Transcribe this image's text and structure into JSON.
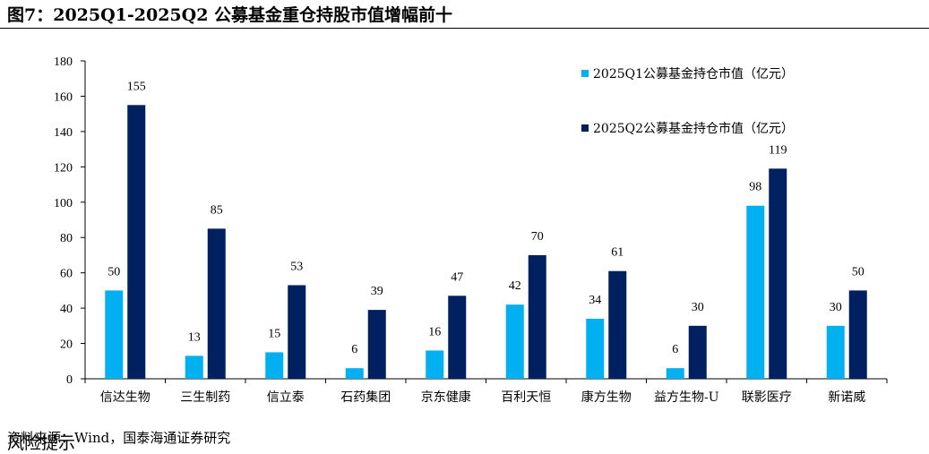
{
  "figure": {
    "title": "图7：2025Q1-2025Q2 公募基金重仓持股市值增幅前十",
    "source": "资料来源：Wind，国泰海通证券研究",
    "risk_note": "风险提示"
  },
  "colors": {
    "q1": "#00B0F0",
    "q2": "#002060"
  },
  "chart_data": {
    "type": "bar",
    "title": "",
    "xlabel": "",
    "ylabel": "",
    "categories": [
      "信达生物",
      "三生制药",
      "信立泰",
      "石药集团",
      "京东健康",
      "百利天恒",
      "康方生物",
      "益方生物-U",
      "联影医疗",
      "新诺威"
    ],
    "series": [
      {
        "name": "2025Q1公募基金持仓市值（亿元）",
        "values": [
          50,
          13,
          15,
          6,
          16,
          42,
          34,
          6,
          98,
          30
        ]
      },
      {
        "name": "2025Q2公募基金持仓市值（亿元）",
        "values": [
          155,
          85,
          53,
          39,
          47,
          70,
          61,
          30,
          119,
          50
        ]
      }
    ],
    "ylim": [
      0,
      180
    ],
    "yticks": [
      0,
      20,
      40,
      60,
      80,
      100,
      120,
      140,
      160,
      180
    ],
    "grid": false,
    "legend_position": "top-right"
  }
}
